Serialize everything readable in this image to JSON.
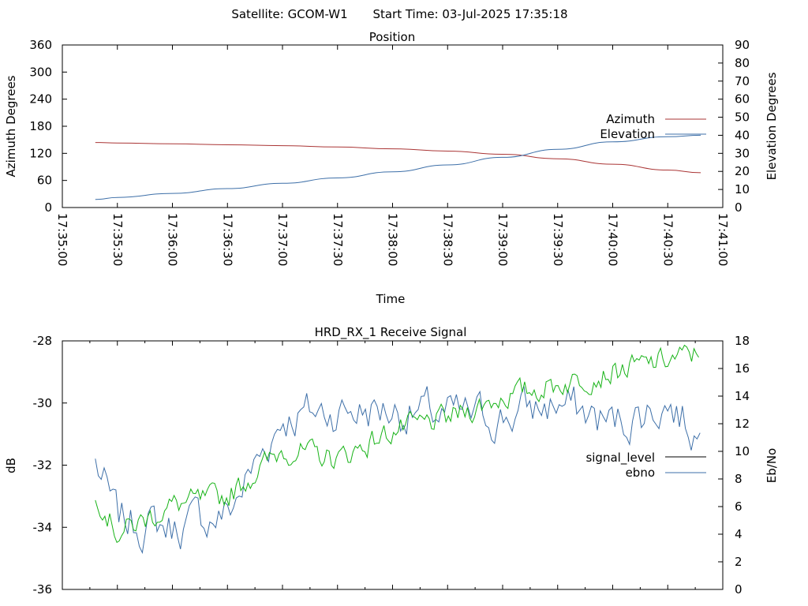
{
  "header": {
    "satellite": "Satellite: GCOM-W1",
    "start_time": "Start Time: 03-Jul-2025 17:35:18"
  },
  "colors": {
    "azimuth": "#aa3535",
    "elevation": "#3d6fa8",
    "ebno": "#3d6fa8",
    "signal_level": "#000000",
    "signal_green": "#17b317",
    "axis": "#000000"
  },
  "chart_data": [
    {
      "type": "line",
      "title": "Position",
      "xlabel": "Time",
      "ylabel": "Azimuth Degrees",
      "y2label": "Elevation Degrees",
      "xlim": [
        "17:35:00",
        "17:41:00"
      ],
      "ylim": [
        0,
        360
      ],
      "y2lim": [
        0,
        90
      ],
      "x_ticks": [
        "17:35:00",
        "17:35:30",
        "17:36:00",
        "17:36:30",
        "17:37:00",
        "17:37:30",
        "17:38:00",
        "17:38:30",
        "17:39:00",
        "17:39:30",
        "17:40:00",
        "17:40:30",
        "17:41:00"
      ],
      "y_ticks": [
        "0",
        "60",
        "120",
        "180",
        "240",
        "300",
        "360"
      ],
      "y2_ticks": [
        "0",
        "10",
        "20",
        "30",
        "40",
        "50",
        "60",
        "70",
        "80",
        "90"
      ],
      "legend_position": "right",
      "series": [
        {
          "name": "Azimuth",
          "axis": "y",
          "color_key": "azimuth",
          "x": [
            "17:35:18",
            "17:35:30",
            "17:36:00",
            "17:36:30",
            "17:37:00",
            "17:37:30",
            "17:38:00",
            "17:38:30",
            "17:39:00",
            "17:39:30",
            "17:40:00",
            "17:40:30",
            "17:40:48"
          ],
          "y": [
            144,
            143,
            141,
            139,
            137,
            134,
            130,
            125,
            118,
            108,
            96,
            83,
            77
          ]
        },
        {
          "name": "Elevation",
          "axis": "y2",
          "color_key": "elevation",
          "x": [
            "17:35:18",
            "17:35:30",
            "17:36:00",
            "17:36:30",
            "17:37:00",
            "17:37:30",
            "17:38:00",
            "17:38:30",
            "17:39:00",
            "17:39:30",
            "17:40:00",
            "17:40:30",
            "17:40:48"
          ],
          "y": [
            4.5,
            5.6,
            7.8,
            10.5,
            13.4,
            16.4,
            19.8,
            23.6,
            27.8,
            32.2,
            36.4,
            39.2,
            40.0
          ]
        }
      ]
    },
    {
      "type": "line",
      "title": "HRD_RX_1 Receive Signal",
      "xlabel": "",
      "ylabel": "dB",
      "y2label": "Eb/No",
      "xlim": [
        "17:35:00",
        "17:41:00"
      ],
      "ylim": [
        -36,
        -28
      ],
      "y2lim": [
        0,
        18
      ],
      "y_ticks": [
        "-36",
        "-34",
        "-32",
        "-30",
        "-28"
      ],
      "y2_ticks": [
        "0",
        "2",
        "4",
        "6",
        "8",
        "10",
        "12",
        "14",
        "16",
        "18"
      ],
      "legend_position": "right",
      "series": [
        {
          "name": "signal_level",
          "axis": "y",
          "color_key": "signal_green",
          "x": [
            "17:35:18",
            "17:35:30",
            "17:36:00",
            "17:36:30",
            "17:37:00",
            "17:37:30",
            "17:38:00",
            "17:38:30",
            "17:39:00",
            "17:39:30",
            "17:40:00",
            "17:40:30",
            "17:40:48"
          ],
          "y": [
            -32.8,
            -34.2,
            -33.3,
            -33.0,
            -31.5,
            -31.8,
            -30.9,
            -30.5,
            -29.8,
            -29.4,
            -29.0,
            -28.6,
            -28.4
          ]
        },
        {
          "name": "ebno",
          "axis": "y2",
          "color_key": "ebno",
          "x": [
            "17:35:18",
            "17:35:30",
            "17:36:00",
            "17:36:30",
            "17:37:00",
            "17:37:30",
            "17:38:00",
            "17:38:30",
            "17:39:00",
            "17:39:30",
            "17:40:00",
            "17:40:30",
            "17:40:48"
          ],
          "y": [
            9.2,
            5.0,
            4.5,
            5.5,
            12.5,
            13.0,
            13.0,
            12.5,
            12.5,
            13.5,
            12.0,
            13.5,
            11.0
          ]
        }
      ]
    }
  ]
}
